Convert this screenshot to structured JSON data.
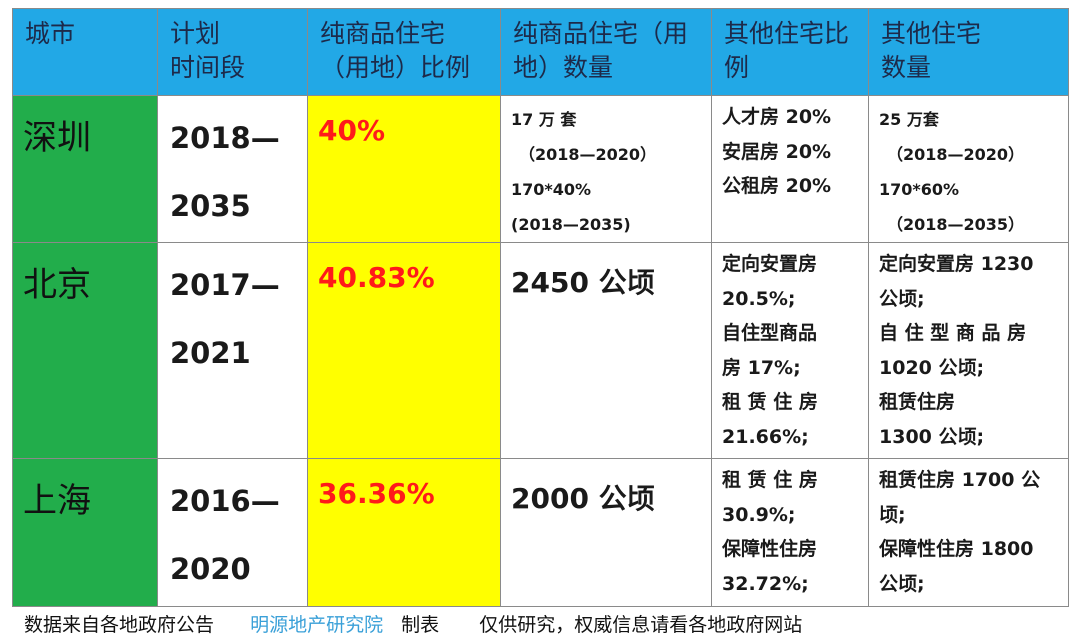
{
  "table": {
    "headers": [
      [
        "城市"
      ],
      [
        "计划",
        "时间段"
      ],
      [
        "纯商品住宅",
        "（用地）比例"
      ],
      [
        "纯商品住宅（用",
        "地）数量"
      ],
      [
        "其他住宅比",
        "例"
      ],
      [
        "其他住宅",
        "数量"
      ]
    ],
    "rows": [
      {
        "city": "深圳",
        "period": [
          "2018—",
          "2035"
        ],
        "ratio": "40%",
        "quantity": [
          "17 万 套",
          "（2018—2020）",
          "170*40%",
          "(2018—2035)"
        ],
        "other_ratio": [
          "人才房 20%",
          "安居房 20%",
          "公租房 20%"
        ],
        "other_quantity": [
          "25 万套",
          "（2018—2020）",
          "170*60%",
          "（2018—2035）"
        ]
      },
      {
        "city": "北京",
        "period": [
          "2017—",
          "2021"
        ],
        "ratio": "40.83%",
        "quantity": [
          "2450 公顷"
        ],
        "other_ratio": [
          "定向安置房",
          "20.5%;",
          "自住型商品",
          "房 17%;",
          "租 赁 住 房",
          "21.66%;"
        ],
        "other_quantity": [
          "定向安置房 1230",
          "公顷;",
          "自 住 型 商 品 房",
          "1020 公顷;",
          "租赁住房",
          "1300 公顷;"
        ]
      },
      {
        "city": "上海",
        "period": [
          "2016—",
          "2020"
        ],
        "ratio": "36.36%",
        "quantity": [
          "2000 公顷"
        ],
        "other_ratio": [
          "租 赁 住 房",
          "30.9%;",
          "保障性住房",
          "32.72%;"
        ],
        "other_quantity": [
          "租赁住房 1700 公",
          "顷;",
          "保障性住房 1800",
          "公顷;"
        ]
      }
    ]
  },
  "footer": {
    "source": "数据来自各地政府公告",
    "brand": "明源地产研究院",
    "made": "制表",
    "note": "仅供研究，权威信息请看各地政府网站"
  }
}
